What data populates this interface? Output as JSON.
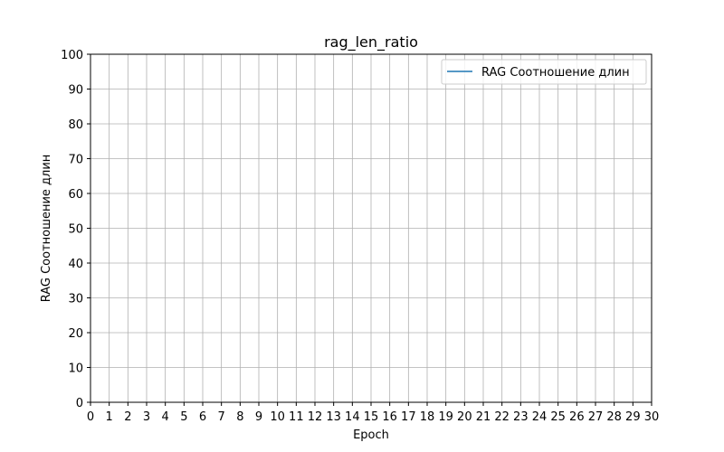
{
  "chart_data": {
    "type": "line",
    "title": "rag_len_ratio",
    "xlabel": "Epoch",
    "ylabel": "RAG Соотношение длин",
    "xlim": [
      0,
      30
    ],
    "ylim": [
      0,
      100
    ],
    "x_ticks": [
      0,
      1,
      2,
      3,
      4,
      5,
      6,
      7,
      8,
      9,
      10,
      11,
      12,
      13,
      14,
      15,
      16,
      17,
      18,
      19,
      20,
      21,
      22,
      23,
      24,
      25,
      26,
      27,
      28,
      29,
      30
    ],
    "y_ticks": [
      0,
      10,
      20,
      30,
      40,
      50,
      60,
      70,
      80,
      90,
      100
    ],
    "grid": true,
    "legend_position": "top-right",
    "series": [
      {
        "name": "RAG Соотношение длин",
        "color": "#1f77b4",
        "x": [],
        "y": []
      }
    ]
  }
}
